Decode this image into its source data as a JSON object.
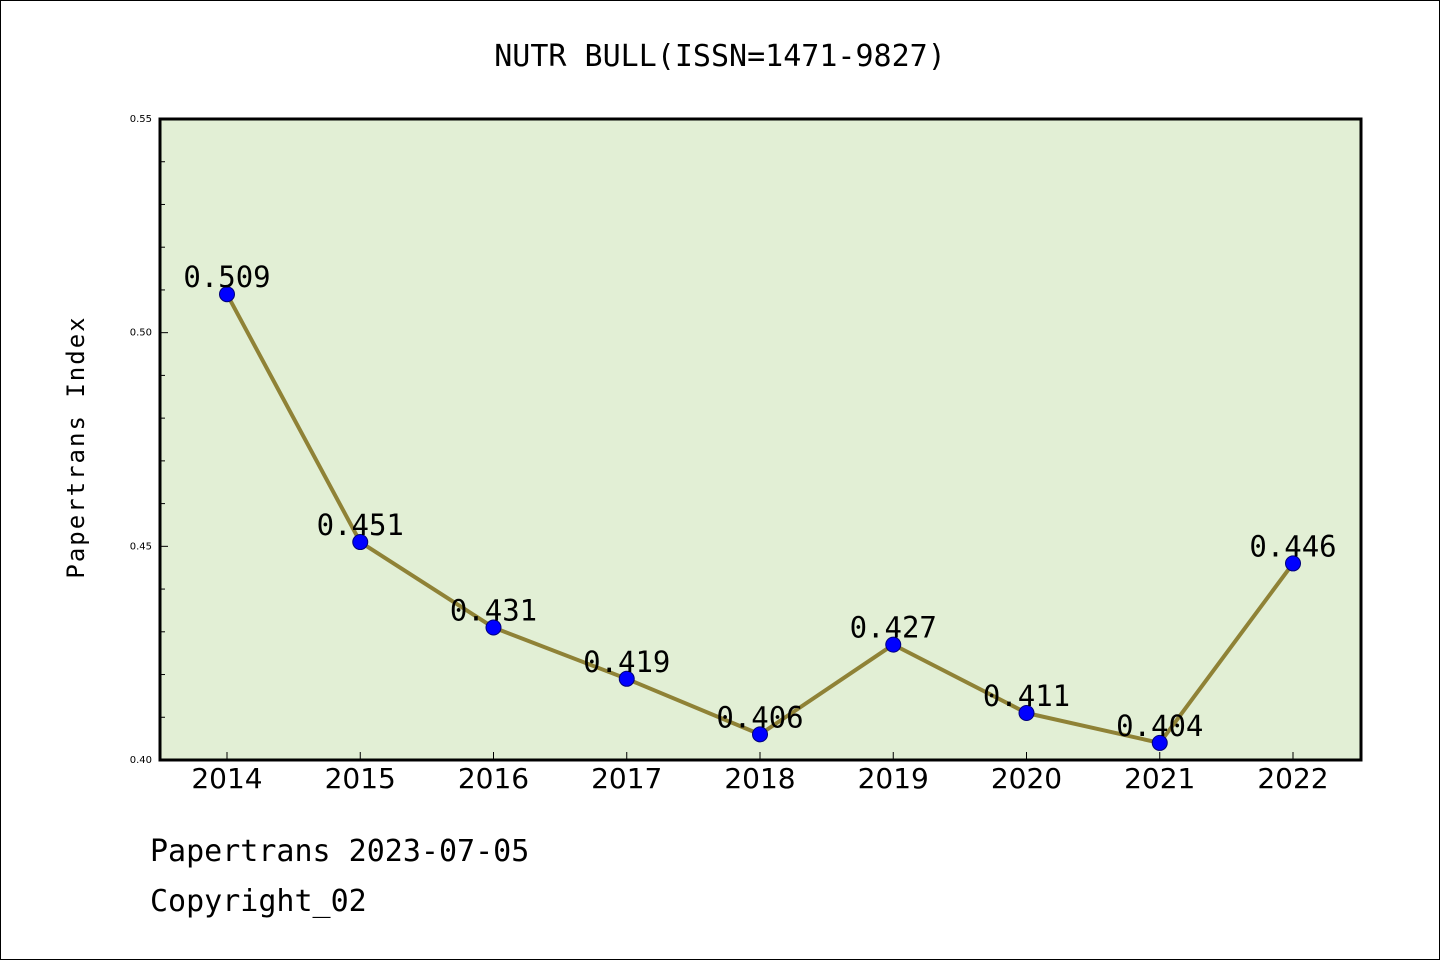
{
  "chart_data": {
    "type": "line",
    "title": "NUTR BULL(ISSN=1471-9827)",
    "ylabel": "Papertrans Index",
    "xlabel": "",
    "categories": [
      "2014",
      "2015",
      "2016",
      "2017",
      "2018",
      "2019",
      "2020",
      "2021",
      "2022"
    ],
    "series": [
      {
        "values": [
          0.509,
          0.451,
          0.431,
          0.419,
          0.406,
          0.427,
          0.411,
          0.404,
          0.446
        ]
      }
    ],
    "data_labels": [
      "0.509",
      "0.451",
      "0.431",
      "0.419",
      "0.406",
      "0.427",
      "0.411",
      "0.404",
      "0.446"
    ],
    "ylim": [
      0.4,
      0.55
    ],
    "yticks": [
      "0.40",
      "0.45",
      "0.50",
      "0.55"
    ],
    "ytick_values": [
      0.4,
      0.45,
      0.5,
      0.55
    ],
    "yminor_step": 0.01,
    "grid": false,
    "colors": {
      "plot_background": "#e2efd5",
      "line": "#8f8236",
      "marker": "#0000ff",
      "marker_edge": "#00007a"
    }
  },
  "footer": {
    "line1": "Papertrans 2023-07-05",
    "line2": "Copyright_02"
  }
}
